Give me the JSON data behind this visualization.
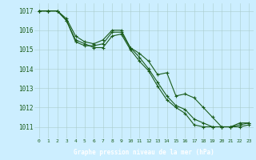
{
  "background_color": "#cceeff",
  "plot_bg_color": "#cceeff",
  "label_bg_color": "#2d6a2d",
  "grid_color": "#bbdddd",
  "line_color": "#1a5c1a",
  "marker_color": "#1a5c1a",
  "xlabel": "Graphe pression niveau de la mer (hPa)",
  "xlabel_color": "#ffffff",
  "xlim": [
    -0.5,
    23.5
  ],
  "ylim": [
    1010.4,
    1017.4
  ],
  "yticks": [
    1011,
    1012,
    1013,
    1014,
    1015,
    1016,
    1017
  ],
  "xticks": [
    0,
    1,
    2,
    3,
    4,
    5,
    6,
    7,
    8,
    9,
    10,
    11,
    12,
    13,
    14,
    15,
    16,
    17,
    18,
    19,
    20,
    21,
    22,
    23
  ],
  "series1_x": [
    0,
    1,
    2,
    3,
    4,
    5,
    6,
    7,
    8,
    9,
    10,
    11,
    12,
    13,
    14,
    15,
    16,
    17,
    18,
    19,
    20,
    21,
    22,
    23
  ],
  "series1_y": [
    1017.0,
    1017.0,
    1017.0,
    1016.6,
    1015.7,
    1015.4,
    1015.3,
    1015.5,
    1016.0,
    1016.0,
    1015.1,
    1014.8,
    1014.4,
    1013.7,
    1013.8,
    1012.6,
    1012.7,
    1012.5,
    1012.0,
    1011.5,
    1011.0,
    1011.0,
    1011.1,
    1011.2
  ],
  "series2_x": [
    0,
    1,
    2,
    3,
    4,
    5,
    6,
    7,
    8,
    9,
    10,
    11,
    12,
    13,
    14,
    15,
    16,
    17,
    18,
    19,
    20,
    21,
    22,
    23
  ],
  "series2_y": [
    1017.0,
    1017.0,
    1017.0,
    1016.5,
    1015.4,
    1015.2,
    1015.2,
    1015.3,
    1015.9,
    1015.9,
    1015.1,
    1014.6,
    1014.0,
    1013.3,
    1012.6,
    1012.1,
    1011.9,
    1011.4,
    1011.2,
    1011.0,
    1011.0,
    1011.0,
    1011.2,
    1011.2
  ],
  "series3_x": [
    0,
    1,
    2,
    3,
    4,
    5,
    6,
    7,
    8,
    9,
    10,
    11,
    12,
    13,
    14,
    15,
    16,
    17,
    18,
    19,
    20,
    21,
    22,
    23
  ],
  "series3_y": [
    1017.0,
    1017.0,
    1017.0,
    1016.5,
    1015.5,
    1015.3,
    1015.1,
    1015.1,
    1015.7,
    1015.8,
    1015.0,
    1014.4,
    1013.9,
    1013.1,
    1012.4,
    1012.0,
    1011.7,
    1011.1,
    1011.0,
    1011.0,
    1011.0,
    1011.0,
    1011.0,
    1011.1
  ]
}
